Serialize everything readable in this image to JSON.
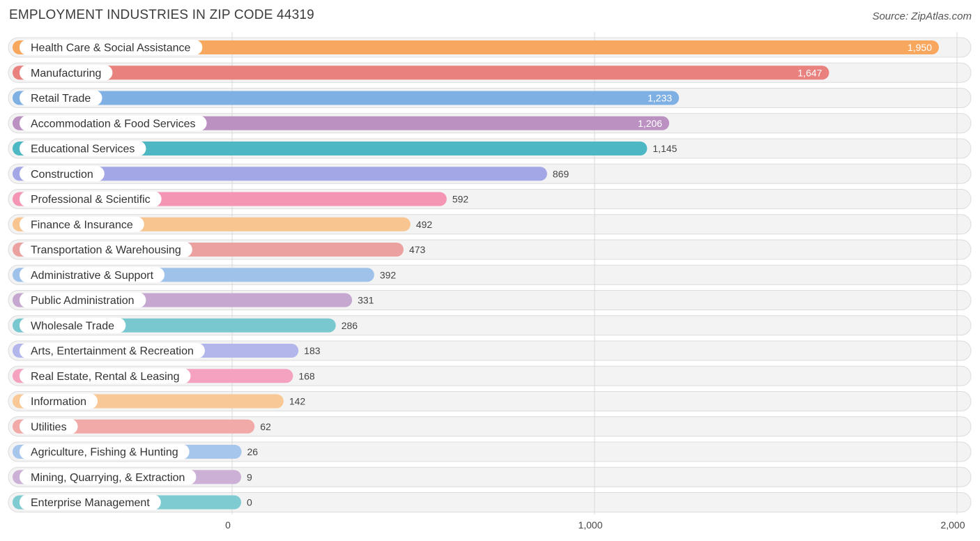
{
  "chart_data": {
    "type": "bar",
    "orientation": "horizontal",
    "title": "EMPLOYMENT INDUSTRIES IN ZIP CODE 44319",
    "source": "Source: ZipAtlas.com",
    "categories": [
      "Health Care & Social Assistance",
      "Manufacturing",
      "Retail Trade",
      "Accommodation & Food Services",
      "Educational Services",
      "Construction",
      "Professional & Scientific",
      "Finance & Insurance",
      "Transportation & Warehousing",
      "Administrative & Support",
      "Public Administration",
      "Wholesale Trade",
      "Arts, Entertainment & Recreation",
      "Real Estate, Rental & Leasing",
      "Information",
      "Utilities",
      "Agriculture, Fishing & Hunting",
      "Mining, Quarrying, & Extraction",
      "Enterprise Management"
    ],
    "values": [
      1950,
      1647,
      1233,
      1206,
      1145,
      869,
      592,
      492,
      473,
      392,
      331,
      286,
      183,
      168,
      142,
      62,
      26,
      9,
      0
    ],
    "value_labels": [
      "1,950",
      "1,647",
      "1,233",
      "1,206",
      "1,145",
      "869",
      "592",
      "492",
      "473",
      "392",
      "331",
      "286",
      "183",
      "168",
      "142",
      "62",
      "26",
      "9",
      "0"
    ],
    "colors": [
      "#f7a85e",
      "#e9827e",
      "#7fb0e3",
      "#bb91c2",
      "#4db8c4",
      "#a3a7e6",
      "#f595b4",
      "#f8c48f",
      "#eba1a0",
      "#9fc2ea",
      "#c6a7d0",
      "#79c8cf",
      "#b2b6ea",
      "#f4a2bf",
      "#f8c896",
      "#f1aaa8",
      "#a6c6ec",
      "#cdb0d6",
      "#7fcbd2"
    ],
    "xlim": [
      0,
      2000
    ],
    "ticks": [
      0,
      1000,
      2000
    ],
    "tick_labels": [
      "0",
      "1,000",
      "2,000"
    ],
    "grid": true
  }
}
